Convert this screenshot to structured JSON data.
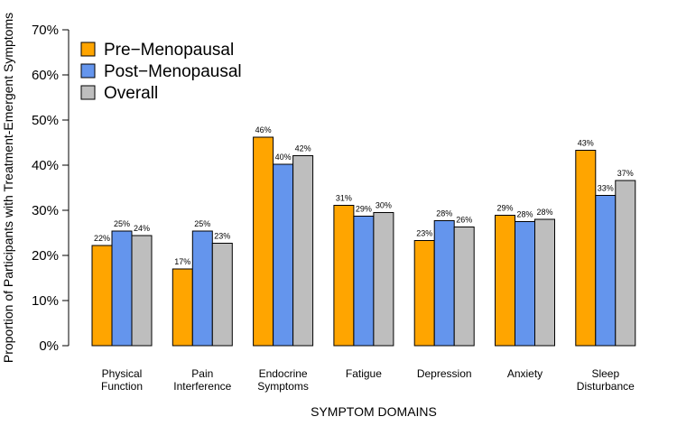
{
  "chart_data": {
    "type": "bar",
    "title": "",
    "xlabel": "SYMPTOM DOMAINS",
    "ylabel": "Proportion of Participants with Treatment-Emergent Symptoms",
    "ylim": [
      0,
      70
    ],
    "yticks": [
      0,
      10,
      20,
      30,
      40,
      50,
      60,
      70
    ],
    "ytick_labels": [
      "0%",
      "10%",
      "20%",
      "30%",
      "40%",
      "50%",
      "60%",
      "70%"
    ],
    "categories": [
      [
        "Physical",
        "Function"
      ],
      [
        "Pain",
        "Interference"
      ],
      [
        "Endocrine",
        "Symptoms"
      ],
      [
        "Fatigue"
      ],
      [
        "Depression"
      ],
      [
        "Anxiety"
      ],
      [
        "Sleep",
        "Disturbance"
      ]
    ],
    "series": [
      {
        "name": "Pre−Menopausal",
        "color": "#FFA500",
        "values": [
          22.2,
          17,
          46.2,
          31.1,
          23.3,
          28.9,
          43.3
        ],
        "labels": [
          "22%",
          "17%",
          "46%",
          "31%",
          "23%",
          "29%",
          "43%"
        ]
      },
      {
        "name": "Post−Menopausal",
        "color": "#6495ED",
        "values": [
          25.4,
          25.4,
          40.2,
          28.7,
          27.7,
          27.5,
          33.3
        ],
        "labels": [
          "25%",
          "25%",
          "40%",
          "29%",
          "28%",
          "28%",
          "33%"
        ]
      },
      {
        "name": "Overall",
        "color": "#BEBEBE",
        "values": [
          24.4,
          22.7,
          42.1,
          29.5,
          26.3,
          28,
          36.6
        ],
        "labels": [
          "24%",
          "23%",
          "42%",
          "30%",
          "26%",
          "28%",
          "37%"
        ]
      }
    ],
    "legend_position": "top-left",
    "grid": false
  }
}
